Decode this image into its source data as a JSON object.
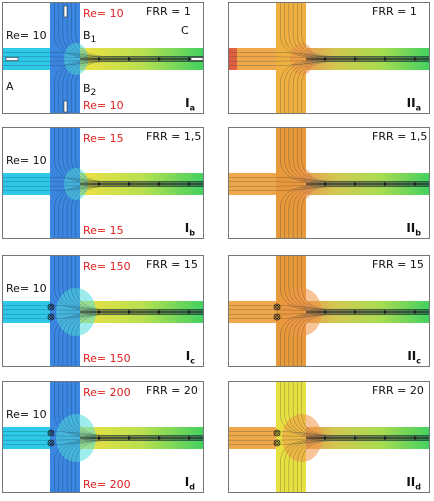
{
  "panels": [
    {
      "id": "Ia",
      "col": "I",
      "row": 0,
      "scheme": "blue",
      "re_main": "Re= 10",
      "re_top": "Re= 10",
      "re_bottom": "Re= 10",
      "frr": "FRR = 1",
      "label_letter": "I",
      "label_sub": "a",
      "labels": {
        "A": "A",
        "B1": "B",
        "B1_sub": "1",
        "B2": "B",
        "B2_sub": "2",
        "C": "C"
      },
      "vortices": 0
    },
    {
      "id": "IIa",
      "col": "II",
      "row": 0,
      "scheme": "orange",
      "frr": "FRR = 1",
      "label_letter": "II",
      "label_sub": "a",
      "vortices": 0
    },
    {
      "id": "Ib",
      "col": "I",
      "row": 1,
      "scheme": "blue",
      "re_main": "Re= 10",
      "re_top": "Re= 15",
      "re_bottom": "Re= 15",
      "frr": "FRR = 1,5",
      "label_letter": "I",
      "label_sub": "b",
      "vortices": 0
    },
    {
      "id": "IIb",
      "col": "II",
      "row": 1,
      "scheme": "orange",
      "frr": "FRR = 1,5",
      "label_letter": "II",
      "label_sub": "b",
      "vortices": 0
    },
    {
      "id": "Ic",
      "col": "I",
      "row": 2,
      "scheme": "blue",
      "re_main": "Re= 10",
      "re_top": "Re= 150",
      "re_bottom": "Re= 150",
      "frr": "FRR = 15",
      "label_letter": "I",
      "label_sub": "c",
      "vortices": 2
    },
    {
      "id": "IIc",
      "col": "II",
      "row": 2,
      "scheme": "orange",
      "frr": "FRR = 15",
      "label_letter": "II",
      "label_sub": "c",
      "vortices": 2
    },
    {
      "id": "Id",
      "col": "I",
      "row": 3,
      "scheme": "blue",
      "re_main": "Re= 10",
      "re_top": "Re= 200",
      "re_bottom": "Re= 200",
      "frr": "FRR = 20",
      "label_letter": "I",
      "label_sub": "d",
      "vortices": 2
    },
    {
      "id": "IId",
      "col": "II",
      "row": 3,
      "scheme": "orange",
      "frr": "FRR = 20",
      "label_letter": "II",
      "label_sub": "d",
      "vortices": 2
    }
  ],
  "colors": {
    "blue_side": "#3a86e0",
    "blue_main": "#2ec8e8",
    "blue_mix": "#38d6c8",
    "orange_side": "#e89a3a",
    "orange_main": "#eea84a",
    "yellow_side": "#e8e040",
    "outlet_yellow": "#f0e040",
    "outlet_green": "#40d060",
    "re_text": "#e02020"
  }
}
